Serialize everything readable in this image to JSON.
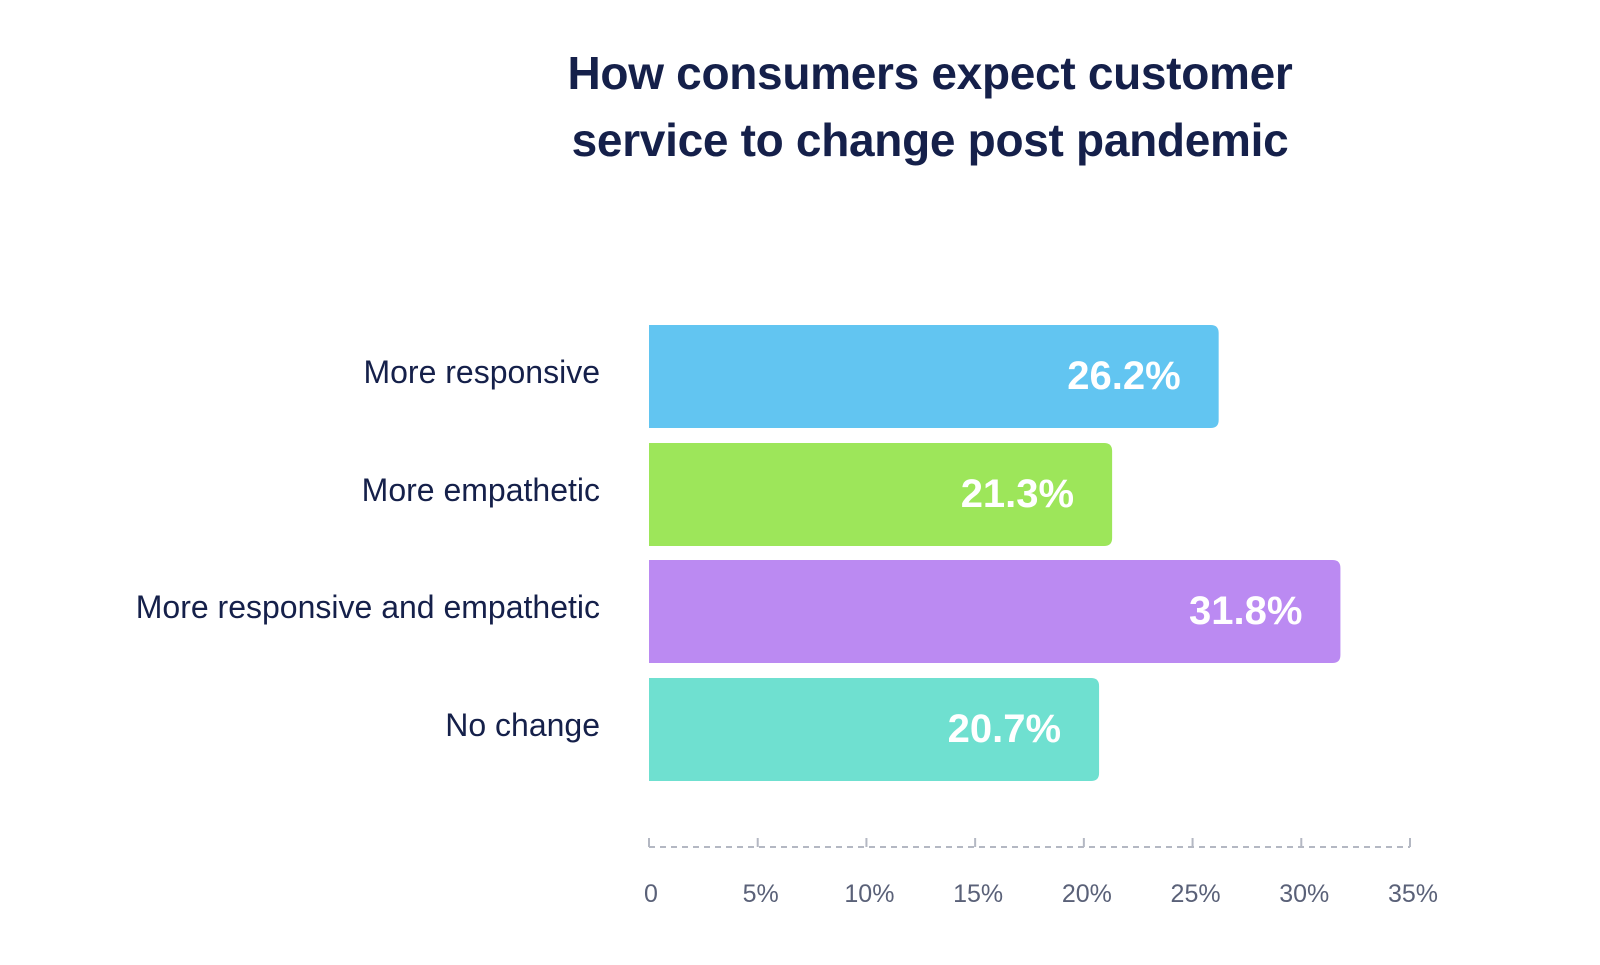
{
  "chart_data": {
    "type": "bar",
    "orientation": "horizontal",
    "title_lines": [
      "How consumers expect customer",
      "service to change post pandemic"
    ],
    "categories": [
      "More responsive",
      "More empathetic",
      "More responsive and empathetic",
      "No change"
    ],
    "values": [
      26.2,
      21.3,
      31.8,
      20.7
    ],
    "value_labels": [
      "26.2%",
      "21.3%",
      "31.8%",
      "20.7%"
    ],
    "colors": [
      "#62c5f1",
      "#9de65a",
      "#bb8af2",
      "#6fe0d0"
    ],
    "xlim": [
      0,
      35
    ],
    "xticks": [
      0,
      5,
      10,
      15,
      20,
      25,
      30,
      35
    ],
    "xtick_labels": [
      "0",
      "5%",
      "10%",
      "15%",
      "20%",
      "25%",
      "30%",
      "35%"
    ],
    "xlabel": "",
    "ylabel": "",
    "grid": false
  }
}
